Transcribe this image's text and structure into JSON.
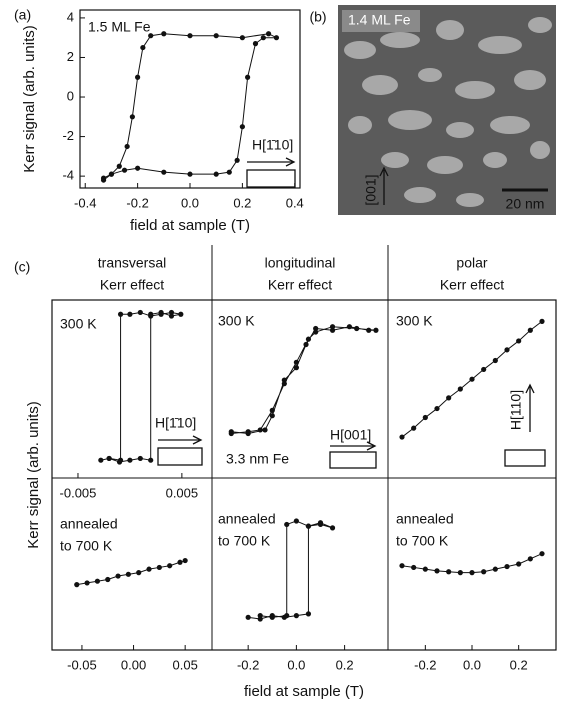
{
  "panel_b": {
    "label": "(b)",
    "title": "1.4 ML Fe",
    "direction": "[001]",
    "scale": "20 nm"
  },
  "panel_c": {
    "label": "(c)",
    "headers": [
      [
        "transversal",
        "Kerr effect"
      ],
      [
        "longitudinal",
        "Kerr effect"
      ],
      [
        "polar",
        "Kerr effect"
      ]
    ],
    "xlabel": "field at sample (T)",
    "ylabel": "Kerr signal (arb. units)"
  },
  "chart_data": [
    {
      "type": "line",
      "label": "(a)",
      "xlabel": "field at sample (T)",
      "ylabel": "Kerr signal (arb. units)",
      "annotations": [
        "1.5 ML Fe",
        "H[1̄10]"
      ],
      "xlim": [
        -0.42,
        0.42
      ],
      "xticks": [
        -0.4,
        -0.2,
        {
          "value": 0,
          "label": "0.0"
        },
        0.2,
        0.4
      ],
      "ylim": [
        -4.6,
        4.4
      ],
      "yticks": [
        -4,
        -2,
        0,
        2,
        4
      ],
      "series": [
        {
          "color": "#111111",
          "x": [
            -0.33,
            -0.3,
            -0.25,
            -0.2,
            -0.1,
            0,
            0.1,
            0.15,
            0.18,
            0.2,
            0.22,
            0.25,
            0.28,
            0.33,
            0.3,
            0.2,
            0.1,
            0,
            -0.1,
            -0.15,
            -0.18,
            -0.2,
            -0.22,
            -0.24,
            -0.27,
            -0.3,
            -0.33
          ],
          "values": [
            -4.1,
            -3.9,
            -3.7,
            -3.6,
            -3.8,
            -3.9,
            -3.9,
            -3.8,
            -3.2,
            -1.5,
            1,
            2.7,
            3,
            3.0,
            3.2,
            3.0,
            3.1,
            3.1,
            3.2,
            3.1,
            2.5,
            1,
            -1,
            -2.5,
            -3.5,
            -3.9,
            -4.2
          ]
        }
      ]
    },
    {
      "type": "line",
      "annotations": [
        "300 K",
        "H[1̄10]"
      ],
      "xlim": [
        -0.0075,
        0.0079
      ],
      "xticks": [
        -0.005,
        0.005
      ],
      "ylim": [
        0,
        10
      ],
      "series": [
        {
          "color": "#111111",
          "x": [
            -0.0028,
            -0.002,
            -0.001,
            0,
            0.001,
            0.002,
            0.002,
            0.003,
            0.004,
            0.0049,
            0.004,
            0.003,
            0.002,
            0.001,
            0,
            -0.0009,
            -0.0009,
            -0.002
          ],
          "values": [
            1.0,
            1.1,
            0.9,
            1.0,
            1.1,
            1.0,
            9.2,
            9.3,
            9.1,
            9.2,
            9.3,
            9.2,
            9.1,
            9.3,
            9.2,
            9.2,
            1.0,
            1.1
          ]
        }
      ]
    },
    {
      "type": "line",
      "annotations": [
        "300 K",
        "H[001]",
        "3.3 nm Fe"
      ],
      "xlim": [
        -0.35,
        0.38
      ],
      "xticks": [],
      "ylim": [
        0,
        10
      ],
      "series": [
        {
          "color": "#111111",
          "x": [
            -0.27,
            -0.2,
            -0.13,
            -0.1,
            -0.05,
            0,
            0.04,
            0.08,
            0.15,
            0.22,
            0.3,
            0.33,
            0.25,
            0.15,
            0.08,
            0.05,
            0,
            -0.05,
            -0.1,
            -0.15,
            -0.2,
            -0.27
          ],
          "values": [
            2.6,
            2.5,
            2.7,
            3.5,
            5.5,
            6.2,
            7.5,
            8.4,
            8.3,
            8.5,
            8.3,
            8.3,
            8.4,
            8.5,
            8.2,
            7.8,
            6.5,
            5.3,
            3.8,
            2.7,
            2.6,
            2.5
          ]
        }
      ]
    },
    {
      "type": "line",
      "annotations": [
        "300 K",
        "H[110]"
      ],
      "xlim": [
        -0.36,
        0.36
      ],
      "xticks": [],
      "ylim": [
        0,
        10
      ],
      "series": [
        {
          "color": "#111111",
          "x": [
            -0.3,
            -0.25,
            -0.2,
            -0.15,
            -0.1,
            -0.05,
            0,
            0.05,
            0.1,
            0.15,
            0.2,
            0.25,
            0.3
          ],
          "values": [
            2.3,
            2.8,
            3.4,
            3.9,
            4.5,
            5.0,
            5.55,
            6.1,
            6.6,
            7.2,
            7.7,
            8.3,
            8.8
          ]
        }
      ]
    },
    {
      "type": "line",
      "annotations": [
        "annealed",
        "to 700 K"
      ],
      "xlim": [
        -0.079,
        0.076
      ],
      "xticks": [
        -0.05,
        {
          "value": 0,
          "label": "0.00"
        },
        0.05
      ],
      "ylim": [
        0,
        10
      ],
      "series": [
        {
          "color": "#111111",
          "x": [
            -0.055,
            -0.045,
            -0.035,
            -0.025,
            -0.015,
            -0.005,
            0.005,
            0.015,
            0.025,
            0.035,
            0.045,
            0.05
          ],
          "values": [
            3.8,
            3.9,
            4.0,
            4.1,
            4.3,
            4.4,
            4.5,
            4.7,
            4.8,
            4.9,
            5.1,
            5.2
          ]
        }
      ]
    },
    {
      "type": "line",
      "annotations": [
        "annealed",
        "to 700 K"
      ],
      "xlim": [
        -0.35,
        0.38
      ],
      "xticks": [
        -0.2,
        {
          "value": 0,
          "label": "0.0"
        },
        0.2
      ],
      "ylim": [
        0,
        10
      ],
      "series": [
        {
          "color": "#111111",
          "x": [
            -0.2,
            -0.15,
            -0.1,
            -0.05,
            0,
            0.05,
            0.05,
            0.1,
            0.15,
            0.1,
            0.05,
            0,
            -0.04,
            -0.04,
            -0.1,
            -0.15
          ],
          "values": [
            1.9,
            1.8,
            2.0,
            1.9,
            2.0,
            2.1,
            7.2,
            7.4,
            7.1,
            7.3,
            7.2,
            7.5,
            7.3,
            2.0,
            1.9,
            2.0
          ]
        }
      ]
    },
    {
      "type": "line",
      "annotations": [
        "annealed",
        "to 700 K"
      ],
      "xlim": [
        -0.36,
        0.36
      ],
      "xticks": [
        -0.2,
        {
          "value": 0,
          "label": "0.0"
        },
        0.2
      ],
      "ylim": [
        0,
        10
      ],
      "series": [
        {
          "color": "#111111",
          "x": [
            -0.3,
            -0.25,
            -0.2,
            -0.15,
            -0.1,
            -0.05,
            0,
            0.05,
            0.1,
            0.15,
            0.2,
            0.25,
            0.3
          ],
          "values": [
            4.9,
            4.8,
            4.7,
            4.6,
            4.55,
            4.5,
            4.5,
            4.55,
            4.7,
            4.85,
            5.0,
            5.3,
            5.6
          ]
        }
      ]
    }
  ]
}
